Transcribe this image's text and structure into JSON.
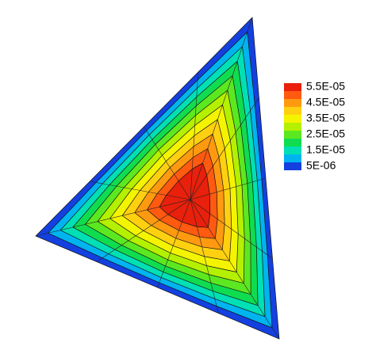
{
  "chart_data": {
    "type": "contour",
    "levels": [
      {
        "value": 5.5e-05,
        "label": "5.5E-05"
      },
      5e-05,
      {
        "value": 4.5e-05,
        "label": "4.5E-05"
      },
      4e-05,
      {
        "value": 3.5e-05,
        "label": "3.5E-05"
      },
      3e-05,
      {
        "value": 2.5e-05,
        "label": "2.5E-05"
      },
      2e-05,
      {
        "value": 1.5e-05,
        "label": "1.5E-05"
      },
      1e-05,
      {
        "value": 5e-06,
        "label": "5E-06"
      }
    ],
    "colors": [
      "#e8200c",
      "#ff5a10",
      "#ff9a10",
      "#ffd010",
      "#f4f400",
      "#b4f000",
      "#5ce820",
      "#10dc50",
      "#00e0b4",
      "#00b4f0",
      "#1440e0"
    ]
  }
}
